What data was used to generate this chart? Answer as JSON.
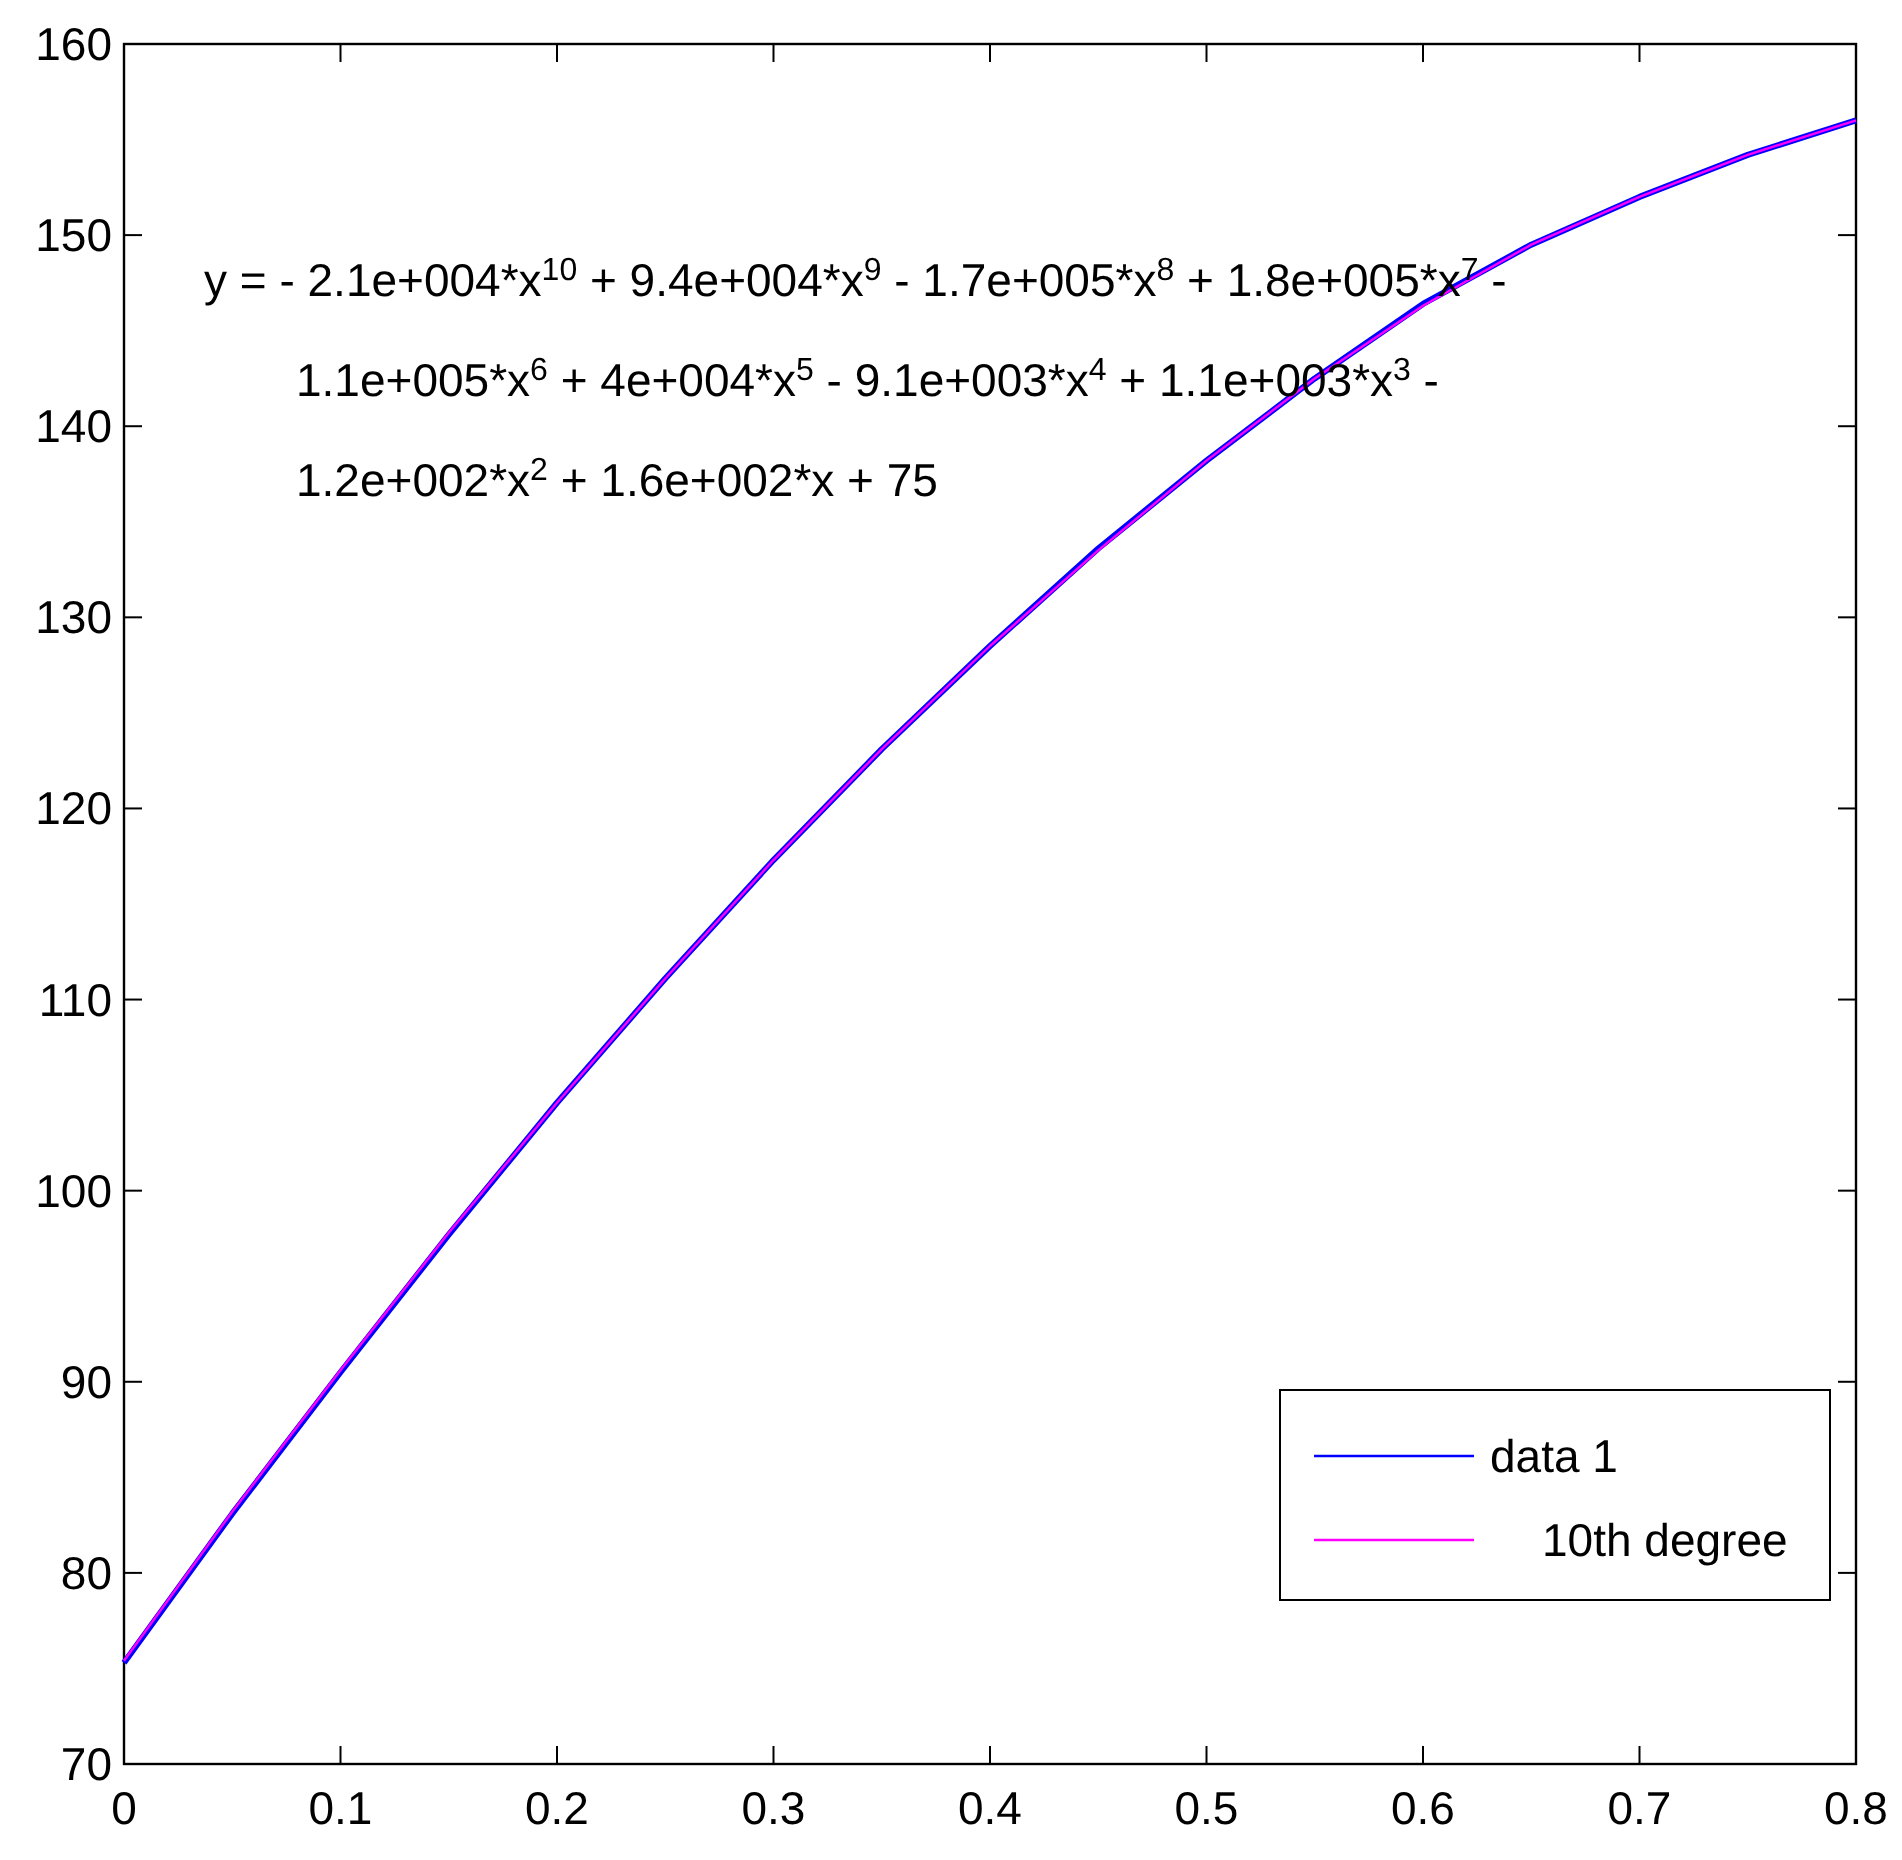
{
  "chart_data": {
    "type": "line",
    "x": [
      0,
      0.05,
      0.1,
      0.15,
      0.2,
      0.25,
      0.3,
      0.35,
      0.4,
      0.45,
      0.5,
      0.55,
      0.6,
      0.65,
      0.7,
      0.75,
      0.8
    ],
    "series": [
      {
        "name": "data 1",
        "color": "#0000ff",
        "values": [
          75.3,
          83.1,
          90.5,
          97.7,
          104.6,
          111.1,
          117.3,
          123.1,
          128.5,
          133.6,
          138.2,
          142.5,
          146.4,
          149.5,
          152.0,
          154.2,
          156.0
        ]
      },
      {
        "name": "10th degree",
        "color": "#ff00ff",
        "values": [
          75.4,
          83.2,
          90.6,
          97.8,
          104.6,
          111.1,
          117.3,
          123.1,
          128.5,
          133.5,
          138.2,
          142.5,
          146.3,
          149.5,
          152.0,
          154.2,
          156.0
        ]
      }
    ],
    "xlim": [
      0,
      0.8
    ],
    "xticks": [
      0,
      0.1,
      0.2,
      0.3,
      0.4,
      0.5,
      0.6,
      0.7,
      0.8
    ],
    "ylim": [
      70,
      160
    ],
    "yticks": [
      70,
      80,
      90,
      100,
      110,
      120,
      130,
      140,
      150,
      160
    ],
    "annotations": [
      "y = - 2.1e+004*x$^{10}$ + 9.4e+004*x$^{9}$ - 1.7e+005*x$^{8}$ + 1.8e+005*x$^{7}$ -",
      "1.1e+005*x$^{6}$ + 4e+004*x$^{5}$ - 9.1e+003*x$^{4}$ + 1.1e+003*x$^{3}$ -",
      "1.2e+002*x$^{2}$ + 1.6e+002*x + 75"
    ],
    "legend": "bottom right",
    "grid": false,
    "marker": "none",
    "line_style": "solid"
  }
}
